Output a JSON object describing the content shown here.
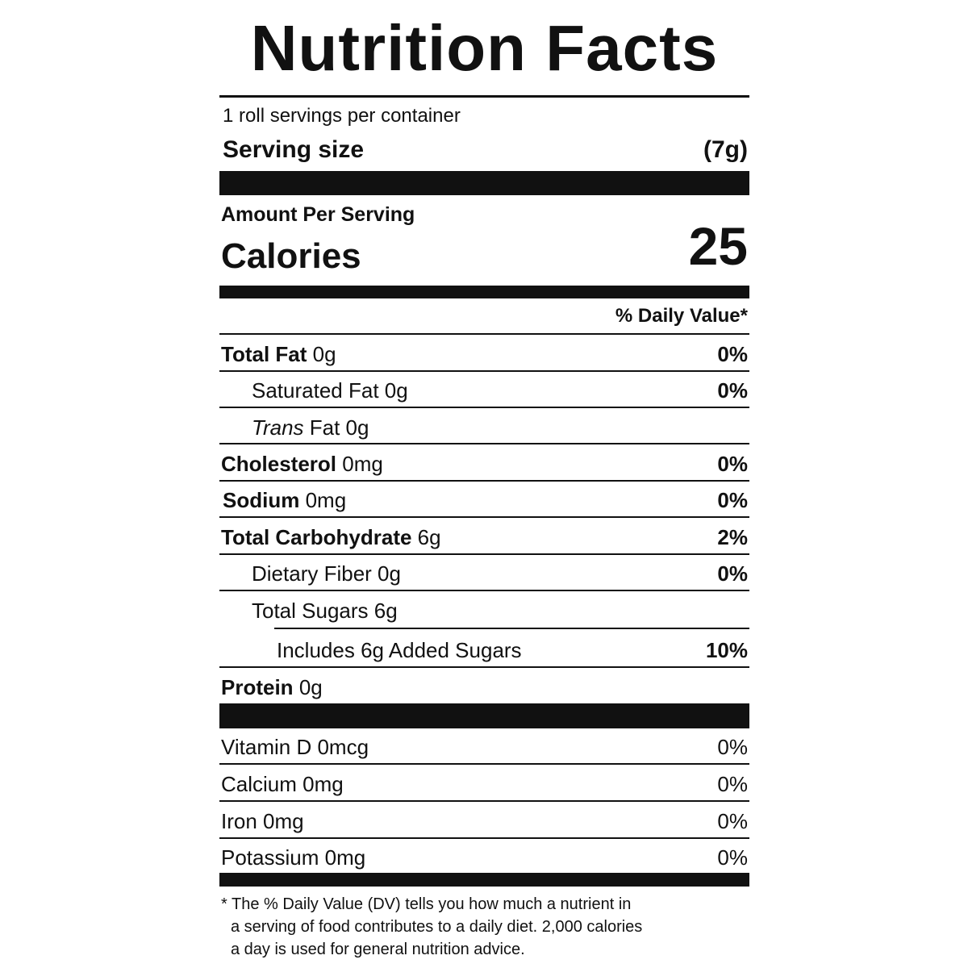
{
  "title": "Nutrition Facts",
  "servings": "1 roll servings per container",
  "serving_size": {
    "label": "Serving size",
    "value": "(7g)"
  },
  "amount_per_serving": "Amount Per Serving",
  "calories": {
    "label": "Calories",
    "value": "25"
  },
  "daily_value_header": "% Daily Value*",
  "nutrients": {
    "total_fat": {
      "label": "Total Fat",
      "amount": "0g",
      "dv": "0%"
    },
    "saturated_fat": {
      "label": "Saturated Fat 0g",
      "dv": "0%"
    },
    "trans_fat": {
      "label_italic": "Trans",
      "label_rest": " Fat 0g"
    },
    "cholesterol": {
      "label": "Cholesterol",
      "amount": "0mg",
      "dv": "0%"
    },
    "sodium": {
      "label": "Sodium",
      "amount": "0mg",
      "dv": "0%"
    },
    "total_carbohydrate": {
      "label": "Total Carbohydrate",
      "amount": "6g",
      "dv": "2%"
    },
    "dietary_fiber": {
      "label": "Dietary Fiber 0g",
      "dv": "0%"
    },
    "total_sugars": {
      "label": "Total Sugars 6g"
    },
    "added_sugars": {
      "label": "Includes 6g Added Sugars",
      "dv": "10%"
    },
    "protein": {
      "label": "Protein",
      "amount": "0g"
    }
  },
  "vitamins": {
    "vitamin_d": {
      "label": "Vitamin D 0mcg",
      "dv": "0%"
    },
    "calcium": {
      "label": "Calcium 0mg",
      "dv": "0%"
    },
    "iron": {
      "label": "Iron 0mg",
      "dv": "0%"
    },
    "potassium": {
      "label": "Potassium 0mg",
      "dv": "0%"
    }
  },
  "footnote": {
    "line1": "* The % Daily Value (DV) tells you how much a nutrient in",
    "line2": "a serving of food contributes to a daily diet. 2,000 calories",
    "line3": "a day is used for general nutrition advice."
  }
}
